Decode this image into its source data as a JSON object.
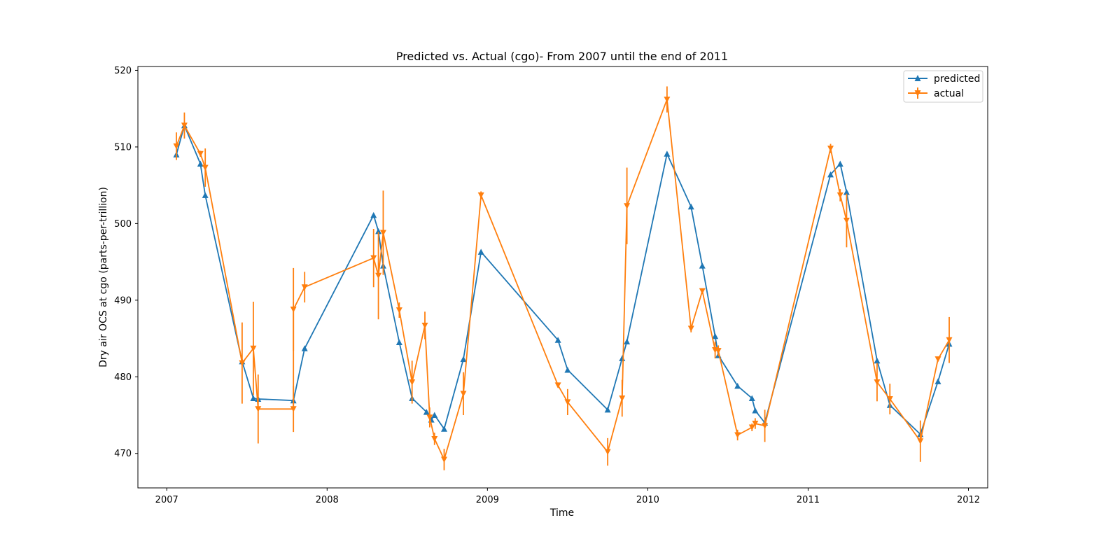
{
  "chart_data": {
    "type": "line",
    "title": "Predicted vs. Actual (cgo)- From 2007 until the end of 2011",
    "xlabel": "Time",
    "ylabel": "Dry air OCS at cgo (parts-per-trillion)",
    "xlim": [
      2006.82,
      2012.12
    ],
    "ylim": [
      465.5,
      520.5
    ],
    "xticks": [
      2007,
      2008,
      2009,
      2010,
      2011,
      2012
    ],
    "yticks": [
      470,
      480,
      490,
      500,
      510,
      520
    ],
    "grid": false,
    "legend_position": "top-right",
    "series": [
      {
        "name": "predicted",
        "color": "#1f77b4",
        "marker": "triangle-up",
        "x": [
          2007.06,
          2007.11,
          2007.21,
          2007.24,
          2007.47,
          2007.54,
          2007.57,
          2007.79,
          2007.86,
          2008.29,
          2008.32,
          2008.35,
          2008.45,
          2008.53,
          2008.62,
          2008.65,
          2008.67,
          2008.73,
          2008.85,
          2008.96,
          2009.44,
          2009.5,
          2009.75,
          2009.84,
          2009.87,
          2010.12,
          2010.27,
          2010.34,
          2010.42,
          2010.44,
          2010.56,
          2010.65,
          2010.67,
          2010.73,
          2011.14,
          2011.2,
          2011.24,
          2011.43,
          2011.51,
          2011.7,
          2011.81,
          2011.88
        ],
        "y": [
          509.0,
          512.8,
          507.8,
          503.7,
          482.0,
          477.2,
          477.1,
          476.9,
          483.7,
          501.1,
          499.0,
          494.5,
          484.5,
          477.2,
          475.4,
          474.4,
          475.0,
          473.2,
          482.3,
          496.3,
          484.8,
          480.9,
          475.7,
          482.4,
          484.6,
          509.1,
          502.2,
          494.5,
          485.3,
          482.8,
          478.8,
          477.2,
          475.6,
          474.0,
          506.4,
          507.8,
          504.1,
          482.1,
          476.3,
          472.5,
          479.4,
          484.3
        ]
      },
      {
        "name": "actual",
        "color": "#ff7f0e",
        "marker": "triangle-down",
        "x": [
          2007.06,
          2007.11,
          2007.21,
          2007.24,
          2007.47,
          2007.54,
          2007.57,
          2007.79,
          2007.79,
          2007.86,
          2008.29,
          2008.32,
          2008.35,
          2008.45,
          2008.53,
          2008.61,
          2008.64,
          2008.67,
          2008.73,
          2008.85,
          2008.96,
          2009.44,
          2009.5,
          2009.75,
          2009.84,
          2009.87,
          2010.12,
          2010.27,
          2010.34,
          2010.42,
          2010.44,
          2010.56,
          2010.65,
          2010.67,
          2010.73,
          2011.14,
          2011.2,
          2011.24,
          2011.43,
          2011.51,
          2011.7,
          2011.81,
          2011.88
        ],
        "y": [
          510.1,
          512.8,
          509.1,
          507.3,
          481.8,
          483.7,
          475.8,
          475.8,
          488.8,
          491.7,
          495.5,
          493.2,
          498.8,
          488.7,
          479.3,
          486.7,
          474.7,
          471.9,
          469.2,
          477.8,
          503.7,
          478.9,
          476.7,
          470.2,
          477.2,
          502.3,
          516.2,
          486.3,
          491.2,
          483.5,
          483.4,
          472.4,
          473.4,
          473.9,
          473.6,
          509.8,
          503.7,
          500.4,
          479.3,
          477.1,
          471.6,
          482.3,
          484.8
        ],
        "yerr": [
          1.8,
          1.7,
          0.4,
          2.5,
          5.3,
          6.1,
          4.5,
          3.0,
          5.4,
          2.0,
          3.8,
          5.7,
          5.5,
          1.0,
          2.8,
          1.8,
          1.3,
          0.8,
          1.4,
          2.8,
          0.5,
          0.3,
          1.7,
          1.8,
          2.4,
          5.0,
          1.7,
          0.5,
          0.3,
          1.1,
          0.7,
          0.7,
          0.5,
          0.7,
          2.1,
          0.6,
          0.8,
          3.5,
          2.5,
          2.0,
          2.7,
          0.3,
          3.0
        ]
      }
    ]
  }
}
